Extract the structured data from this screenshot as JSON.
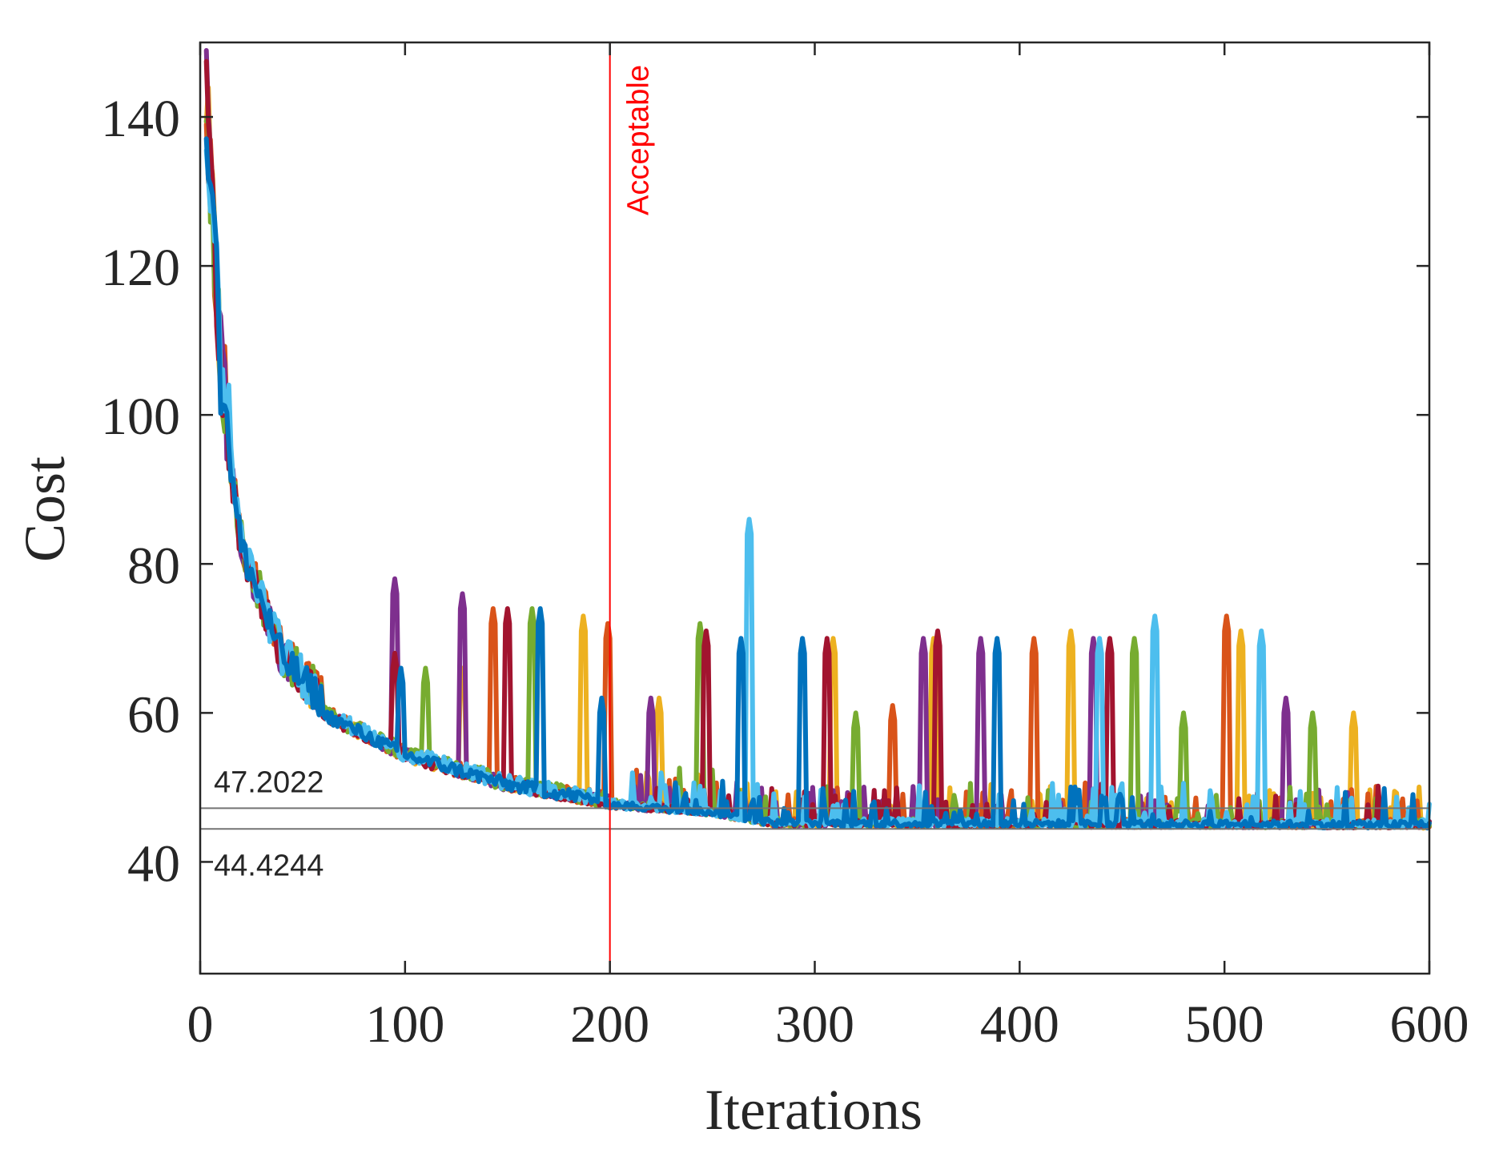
{
  "chart_data": {
    "type": "line",
    "title": "",
    "xlabel": "Iterations",
    "ylabel": "Cost",
    "xlim": [
      0,
      600
    ],
    "ylim": [
      25,
      150
    ],
    "xticks": [
      0,
      100,
      200,
      300,
      400,
      500,
      600
    ],
    "xtick_labels": [
      "0",
      "100",
      "200",
      "300",
      "400",
      "500",
      "600"
    ],
    "yticks": [
      40,
      60,
      80,
      100,
      120,
      140
    ],
    "ytick_labels": [
      "40",
      "60",
      "80",
      "100",
      "120",
      "140"
    ],
    "grid": false,
    "series_colors": [
      "#EDB120",
      "#D95319",
      "#7E2F8E",
      "#77AC30",
      "#A2142F",
      "#4DBEEE",
      "#0072BD"
    ],
    "series_count": 7,
    "convergence_model": {
      "start_value": 150,
      "value_at_200": 47.2022,
      "final_value": 44.4244,
      "plateau_iteration": 280
    },
    "spike_events": [
      [
        2,
        95,
        78
      ],
      [
        6,
        98,
        66
      ],
      [
        3,
        110,
        66
      ],
      [
        2,
        128,
        76
      ],
      [
        0,
        128,
        66
      ],
      [
        4,
        95,
        68
      ],
      [
        1,
        143,
        74
      ],
      [
        4,
        150,
        74
      ],
      [
        3,
        162,
        74
      ],
      [
        6,
        166,
        74
      ],
      [
        0,
        187,
        73
      ],
      [
        1,
        199,
        72
      ],
      [
        6,
        196,
        62
      ],
      [
        2,
        220,
        62
      ],
      [
        0,
        224,
        62
      ],
      [
        3,
        244,
        72
      ],
      [
        4,
        247,
        71
      ],
      [
        6,
        264,
        70
      ],
      [
        5,
        268,
        86
      ],
      [
        6,
        294,
        70
      ],
      [
        4,
        306,
        70
      ],
      [
        0,
        309,
        70
      ],
      [
        3,
        320,
        60
      ],
      [
        1,
        338,
        61
      ],
      [
        2,
        353,
        70
      ],
      [
        4,
        360,
        71
      ],
      [
        0,
        358,
        70
      ],
      [
        2,
        381,
        70
      ],
      [
        6,
        389,
        70
      ],
      [
        1,
        407,
        70
      ],
      [
        0,
        425,
        71
      ],
      [
        2,
        436,
        70
      ],
      [
        5,
        439,
        70
      ],
      [
        4,
        444,
        70
      ],
      [
        3,
        456,
        70
      ],
      [
        5,
        466,
        73
      ],
      [
        3,
        480,
        60
      ],
      [
        1,
        501,
        73
      ],
      [
        0,
        508,
        71
      ],
      [
        5,
        518,
        71
      ],
      [
        2,
        530,
        62
      ],
      [
        3,
        543,
        60
      ],
      [
        0,
        563,
        60
      ]
    ],
    "hlines": [
      {
        "y": 47.2022,
        "label": "47.2022",
        "color": "#737373"
      },
      {
        "y": 44.4244,
        "label": "44.4244",
        "color": "#737373"
      }
    ],
    "vline": {
      "x": 200,
      "label": "Acceptable",
      "color": "#FF0000"
    }
  }
}
